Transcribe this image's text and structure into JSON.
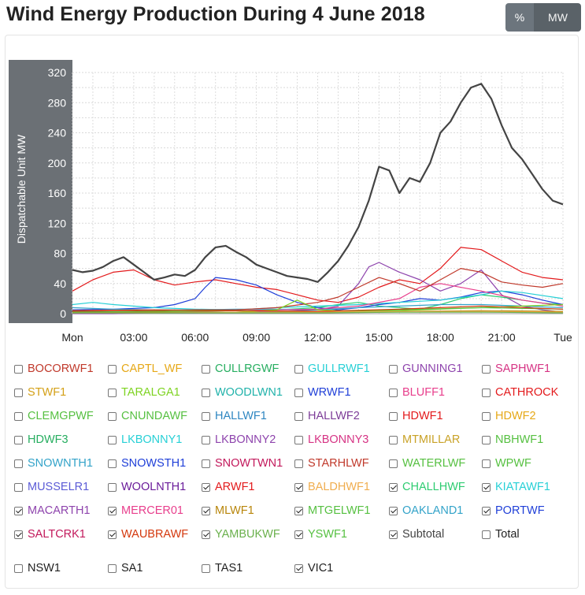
{
  "page": {
    "title": "Wind Energy Production During 4 June 2018",
    "toggle_pct": "%",
    "toggle_mw": "MW"
  },
  "chart_data": {
    "type": "line",
    "title": "Wind Energy Production During 4 June 2018",
    "ylabel": "Dispatchable Unit MW",
    "ylim": [
      0,
      320
    ],
    "yticks": [
      0,
      40,
      80,
      120,
      160,
      200,
      240,
      280,
      320
    ],
    "xlim": [
      0,
      24
    ],
    "xticks": [
      {
        "value": 0,
        "label": "Mon"
      },
      {
        "value": 3,
        "label": "03:00"
      },
      {
        "value": 6,
        "label": "06:00"
      },
      {
        "value": 9,
        "label": "09:00"
      },
      {
        "value": 12,
        "label": "12:00"
      },
      {
        "value": 15,
        "label": "15:00"
      },
      {
        "value": 18,
        "label": "18:00"
      },
      {
        "value": 21,
        "label": "21:00"
      },
      {
        "value": 24,
        "label": "Tue"
      }
    ],
    "grid": true,
    "series": [
      {
        "name": "Subtotal",
        "color": "#444444",
        "width": 2.2,
        "x": [
          0,
          0.5,
          1,
          1.5,
          2,
          2.5,
          3,
          3.5,
          4,
          4.5,
          5,
          5.5,
          6,
          6.5,
          7,
          7.5,
          8,
          8.5,
          9,
          9.5,
          10,
          10.5,
          11,
          11.5,
          12,
          12.5,
          13,
          13.5,
          14,
          14.5,
          15,
          15.5,
          16,
          16.5,
          17,
          17.5,
          18,
          18.5,
          19,
          19.5,
          20,
          20.5,
          21,
          21.5,
          22,
          22.5,
          23,
          23.5,
          24
        ],
        "y": [
          58,
          55,
          57,
          62,
          70,
          75,
          65,
          55,
          45,
          48,
          52,
          50,
          58,
          75,
          88,
          90,
          82,
          75,
          65,
          60,
          55,
          50,
          48,
          46,
          42,
          55,
          70,
          90,
          115,
          150,
          195,
          190,
          160,
          180,
          175,
          200,
          240,
          255,
          280,
          300,
          305,
          285,
          250,
          220,
          205,
          185,
          165,
          150,
          145
        ]
      },
      {
        "name": "ARWF1",
        "color": "#e31a1c",
        "width": 1.2,
        "x": [
          0,
          1,
          2,
          3,
          4,
          5,
          6,
          7,
          8,
          9,
          10,
          11,
          12,
          13,
          14,
          15,
          16,
          17,
          18,
          19,
          20,
          21,
          22,
          23,
          24
        ],
        "y": [
          30,
          45,
          55,
          58,
          45,
          38,
          42,
          45,
          40,
          35,
          32,
          25,
          18,
          15,
          22,
          35,
          45,
          40,
          60,
          88,
          85,
          70,
          55,
          48,
          45
        ]
      },
      {
        "name": "MACARTH1",
        "color": "#8e44ad",
        "width": 1.2,
        "x": [
          0,
          2,
          4,
          6,
          8,
          10,
          12,
          13,
          14,
          14.5,
          15,
          16,
          17,
          18,
          19,
          20,
          21,
          22,
          23,
          24
        ],
        "y": [
          0,
          0,
          1,
          1,
          2,
          3,
          5,
          10,
          40,
          62,
          68,
          55,
          45,
          30,
          40,
          58,
          25,
          10,
          5,
          2
        ]
      },
      {
        "name": "CHALLHWF",
        "color": "#2ecc71",
        "width": 1.2,
        "x": [
          0,
          2,
          4,
          6,
          8,
          10,
          12,
          13,
          14,
          15,
          16,
          17,
          18,
          19,
          20,
          21,
          22,
          23,
          24
        ],
        "y": [
          3,
          2,
          2,
          3,
          4,
          5,
          8,
          12,
          15,
          10,
          8,
          6,
          12,
          20,
          25,
          22,
          18,
          14,
          12
        ]
      },
      {
        "name": "PORTWF",
        "color": "#1f3fd8",
        "width": 1.2,
        "x": [
          0,
          2,
          4,
          5,
          6,
          6.5,
          7,
          8,
          9,
          10,
          11,
          12,
          13,
          14,
          15,
          16,
          17,
          18,
          19,
          20,
          21,
          22,
          23,
          24
        ],
        "y": [
          5,
          6,
          8,
          12,
          20,
          35,
          48,
          45,
          38,
          25,
          15,
          8,
          5,
          8,
          12,
          15,
          20,
          18,
          22,
          28,
          30,
          25,
          18,
          12
        ]
      },
      {
        "name": "OAKLAND1",
        "color": "#33a3c9",
        "width": 1.2,
        "x": [
          0,
          2,
          4,
          6,
          8,
          10,
          12,
          14,
          16,
          18,
          20,
          22,
          24
        ],
        "y": [
          8,
          6,
          5,
          5,
          6,
          6,
          5,
          8,
          10,
          12,
          12,
          10,
          8
        ]
      },
      {
        "name": "KIATAWF1",
        "color": "#27d0d6",
        "width": 1.2,
        "x": [
          0,
          1,
          2,
          3,
          4,
          6,
          8,
          10,
          12,
          14,
          16,
          18,
          20,
          21,
          22,
          24
        ],
        "y": [
          12,
          15,
          12,
          10,
          8,
          6,
          5,
          8,
          10,
          12,
          15,
          18,
          25,
          30,
          28,
          20
        ]
      },
      {
        "name": "MERCER01",
        "color": "#e83e8c",
        "width": 1.2,
        "x": [
          0,
          2,
          4,
          6,
          8,
          10,
          12,
          14,
          16,
          17,
          18,
          20,
          22,
          24
        ],
        "y": [
          2,
          2,
          3,
          3,
          4,
          5,
          6,
          10,
          20,
          35,
          40,
          30,
          18,
          10
        ]
      },
      {
        "name": "SALTCRK1",
        "color": "#c0392b",
        "width": 1.2,
        "x": [
          0,
          2,
          4,
          6,
          8,
          10,
          12,
          13,
          14,
          15,
          16,
          17,
          18,
          19,
          20,
          21,
          22,
          23,
          24
        ],
        "y": [
          3,
          3,
          4,
          5,
          5,
          8,
          15,
          22,
          35,
          48,
          40,
          30,
          45,
          60,
          55,
          42,
          38,
          35,
          40
        ]
      },
      {
        "name": "MTGELWF1",
        "color": "#7ed321",
        "width": 1.2,
        "x": [
          0,
          4,
          8,
          10,
          11,
          12,
          14,
          16,
          18,
          20,
          22,
          24
        ],
        "y": [
          1,
          2,
          2,
          5,
          18,
          5,
          3,
          4,
          6,
          8,
          10,
          12
        ]
      },
      {
        "name": "YSWF1",
        "color": "#56c041",
        "width": 1.2,
        "x": [
          0,
          4,
          8,
          12,
          16,
          20,
          24
        ],
        "y": [
          2,
          3,
          4,
          3,
          5,
          8,
          6
        ]
      },
      {
        "name": "MLWF1",
        "color": "#b8860b",
        "width": 1.2,
        "x": [
          0,
          4,
          8,
          12,
          16,
          20,
          24
        ],
        "y": [
          1,
          2,
          2,
          2,
          3,
          4,
          3
        ]
      },
      {
        "name": "BALDHWF1",
        "color": "#f0ad4e",
        "width": 1.2,
        "x": [
          0,
          4,
          8,
          12,
          16,
          20,
          24
        ],
        "y": [
          1,
          1,
          2,
          2,
          3,
          3,
          2
        ]
      },
      {
        "name": "WAUBRAWF",
        "color": "#d4380d",
        "width": 1.2,
        "x": [
          0,
          4,
          8,
          12,
          16,
          20,
          24
        ],
        "y": [
          4,
          5,
          4,
          3,
          6,
          10,
          6
        ]
      },
      {
        "name": "YAMBUKWF",
        "color": "#6ab04c",
        "width": 1.2,
        "x": [
          0,
          4,
          8,
          12,
          16,
          20,
          24
        ],
        "y": [
          1,
          1,
          1,
          1,
          2,
          2,
          1
        ]
      }
    ]
  },
  "legend": [
    {
      "label": "BOCORWF1",
      "color": "#c0392b",
      "checked": false
    },
    {
      "label": "CAPTL_WF",
      "color": "#e6a817",
      "checked": false
    },
    {
      "label": "CULLRGWF",
      "color": "#27ae60",
      "checked": false
    },
    {
      "label": "GULLRWF1",
      "color": "#27d0d6",
      "checked": false
    },
    {
      "label": "GUNNING1",
      "color": "#8e44ad",
      "checked": false
    },
    {
      "label": "SAPHWF1",
      "color": "#d63384",
      "checked": false
    },
    {
      "label": "STWF1",
      "color": "#d4a017",
      "checked": false
    },
    {
      "label": "TARALGA1",
      "color": "#7ed321",
      "checked": false
    },
    {
      "label": "WOODLWN1",
      "color": "#20b2aa",
      "checked": false
    },
    {
      "label": "WRWF1",
      "color": "#1f3fd8",
      "checked": false
    },
    {
      "label": "BLUFF1",
      "color": "#e83e8c",
      "checked": false
    },
    {
      "label": "CATHROCK",
      "color": "#e31a1c",
      "checked": false
    },
    {
      "label": "CLEMGPWF",
      "color": "#56c041",
      "checked": false
    },
    {
      "label": "CNUNDAWF",
      "color": "#56c041",
      "checked": false
    },
    {
      "label": "HALLWF1",
      "color": "#2e86c1",
      "checked": false
    },
    {
      "label": "HALLWF2",
      "color": "#7d3c98",
      "checked": false
    },
    {
      "label": "HDWF1",
      "color": "#e31a1c",
      "checked": false
    },
    {
      "label": "HDWF2",
      "color": "#e6a817",
      "checked": false
    },
    {
      "label": "HDWF3",
      "color": "#27ae60",
      "checked": false
    },
    {
      "label": "LKBONNY1",
      "color": "#27d0d6",
      "checked": false
    },
    {
      "label": "LKBONNY2",
      "color": "#8e44ad",
      "checked": false
    },
    {
      "label": "LKBONNY3",
      "color": "#d63384",
      "checked": false
    },
    {
      "label": "MTMILLAR",
      "color": "#c9a227",
      "checked": false
    },
    {
      "label": "NBHWF1",
      "color": "#56c041",
      "checked": false
    },
    {
      "label": "SNOWNTH1",
      "color": "#33a3c9",
      "checked": false
    },
    {
      "label": "SNOWSTH1",
      "color": "#1f3fd8",
      "checked": false
    },
    {
      "label": "SNOWTWN1",
      "color": "#c2185b",
      "checked": false
    },
    {
      "label": "STARHLWF",
      "color": "#c0392b",
      "checked": false
    },
    {
      "label": "WATERLWF",
      "color": "#56c041",
      "checked": false
    },
    {
      "label": "WPWF",
      "color": "#56c041",
      "checked": false
    },
    {
      "label": "MUSSELR1",
      "color": "#5b5bd6",
      "checked": false
    },
    {
      "label": "WOOLNTH1",
      "color": "#6a1b9a",
      "checked": false
    },
    {
      "label": "ARWF1",
      "color": "#e31a1c",
      "checked": true
    },
    {
      "label": "BALDHWF1",
      "color": "#f0ad4e",
      "checked": true
    },
    {
      "label": "CHALLHWF",
      "color": "#2ecc71",
      "checked": true
    },
    {
      "label": "KIATAWF1",
      "color": "#27d0d6",
      "checked": true
    },
    {
      "label": "MACARTH1",
      "color": "#8e44ad",
      "checked": true
    },
    {
      "label": "MERCER01",
      "color": "#e83e8c",
      "checked": true
    },
    {
      "label": "MLWF1",
      "color": "#b8860b",
      "checked": true
    },
    {
      "label": "MTGELWF1",
      "color": "#56c041",
      "checked": true
    },
    {
      "label": "OAKLAND1",
      "color": "#33a3c9",
      "checked": true
    },
    {
      "label": "PORTWF",
      "color": "#1f3fd8",
      "checked": true
    },
    {
      "label": "SALTCRK1",
      "color": "#c2185b",
      "checked": true
    },
    {
      "label": "WAUBRAWF",
      "color": "#d4380d",
      "checked": true
    },
    {
      "label": "YAMBUKWF",
      "color": "#6ab04c",
      "checked": true
    },
    {
      "label": "YSWF1",
      "color": "#56c041",
      "checked": true
    },
    {
      "label": "Subtotal",
      "color": "#444444",
      "checked": true
    },
    {
      "label": "Total",
      "color": "#222222",
      "checked": false
    }
  ],
  "regions": [
    {
      "label": "NSW1",
      "checked": false
    },
    {
      "label": "SA1",
      "checked": false
    },
    {
      "label": "TAS1",
      "checked": false
    },
    {
      "label": "VIC1",
      "checked": true
    }
  ]
}
